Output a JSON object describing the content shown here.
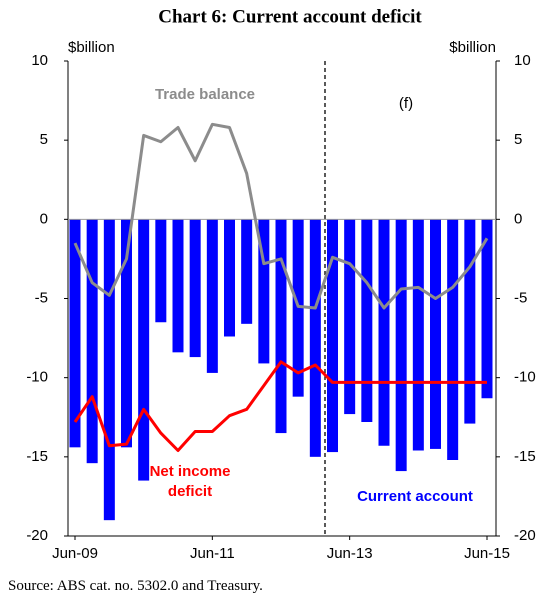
{
  "chart_data": {
    "type": "bar",
    "title": "Chart 6: Current account deficit",
    "source": "Source: ABS cat. no. 5302.0 and Treasury.",
    "y_label": "$billion",
    "y2_label": "$billion",
    "categories": [
      "Jun-09",
      null,
      null,
      null,
      null,
      null,
      null,
      null,
      "Jun-11",
      null,
      null,
      null,
      null,
      null,
      null,
      null,
      "Jun-13",
      null,
      null,
      null,
      null,
      null,
      null,
      null,
      "Jun-15"
    ],
    "series": [
      {
        "name": "Current account",
        "type": "bar",
        "color": "#0000ff",
        "values": [
          -14.4,
          -15.4,
          -19.0,
          -14.4,
          -16.5,
          -6.5,
          -8.4,
          -8.7,
          -9.7,
          -7.4,
          -6.6,
          -9.1,
          -13.5,
          -11.2,
          -15.0,
          -14.7,
          -12.3,
          -12.8,
          -14.3,
          -15.9,
          -14.6,
          -14.5,
          -15.2,
          -12.9,
          -11.3
        ]
      },
      {
        "name": "Trade balance",
        "type": "line",
        "color": "#8c8c8c",
        "values": [
          -1.5,
          -4.0,
          -4.8,
          -2.5,
          5.3,
          4.9,
          5.8,
          3.7,
          6.0,
          5.8,
          2.9,
          -2.8,
          -2.5,
          -5.5,
          -5.6,
          -2.4,
          -2.8,
          -4.0,
          -5.6,
          -4.4,
          -4.3,
          -5.0,
          -4.3,
          -3.0,
          -1.2
        ]
      },
      {
        "name": "Net income deficit",
        "type": "line",
        "color": "#ff0000",
        "values": [
          -12.8,
          -11.2,
          -14.3,
          -14.2,
          -12.0,
          -13.5,
          -14.6,
          -13.4,
          -13.4,
          -12.4,
          -12.0,
          -10.5,
          -9.0,
          -9.7,
          -9.2,
          -10.3,
          -10.3,
          -10.3,
          -10.3,
          -10.3,
          -10.3,
          -10.3,
          -10.3,
          -10.3,
          -10.3
        ]
      }
    ],
    "annotations": [
      "(f)"
    ],
    "ylim": [
      -20,
      10
    ],
    "yticks": [
      10,
      5,
      0,
      -5,
      -10,
      -15,
      -20
    ],
    "y2lim": [
      -20,
      10
    ],
    "y2ticks": [
      10,
      5,
      0,
      -5,
      -10,
      -15,
      -20
    ]
  }
}
